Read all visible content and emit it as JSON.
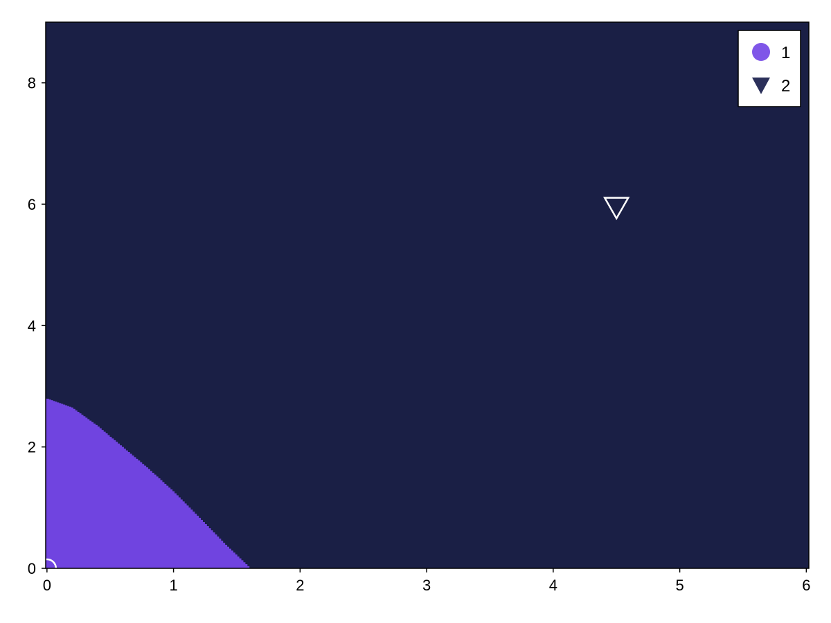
{
  "chart_data": {
    "type": "heatmap",
    "title": "",
    "xlabel": "",
    "ylabel": "",
    "xlim": [
      -0.01,
      6.02
    ],
    "ylim": [
      0,
      9
    ],
    "x_ticks": [
      "0",
      "1",
      "2",
      "3",
      "4",
      "5",
      "6"
    ],
    "y_ticks": [
      "0",
      "2",
      "4",
      "6",
      "8"
    ],
    "grid": false,
    "legend_position": "top-right",
    "background_color": "#1a1f45",
    "regions": [
      {
        "name": "1",
        "color": "#7044e0",
        "boundary": [
          [
            0,
            2.8
          ],
          [
            0.2,
            2.65
          ],
          [
            0.4,
            2.35
          ],
          [
            0.6,
            2.0
          ],
          [
            0.8,
            1.65
          ],
          [
            1.0,
            1.27
          ],
          [
            1.2,
            0.85
          ],
          [
            1.4,
            0.42
          ],
          [
            1.6,
            0.02
          ]
        ]
      }
    ],
    "series": [
      {
        "name": "1",
        "marker": "circle",
        "color": "#7f56e8",
        "points": [
          [
            0,
            0
          ]
        ]
      },
      {
        "name": "2",
        "marker": "triangle-down",
        "color": "#2b305a",
        "points": [
          [
            4.5,
            5.95
          ]
        ]
      }
    ],
    "legend": [
      {
        "label": "1",
        "marker": "circle",
        "color": "#7f56e8"
      },
      {
        "label": "2",
        "marker": "triangle-down",
        "color": "#2b305a"
      }
    ]
  }
}
